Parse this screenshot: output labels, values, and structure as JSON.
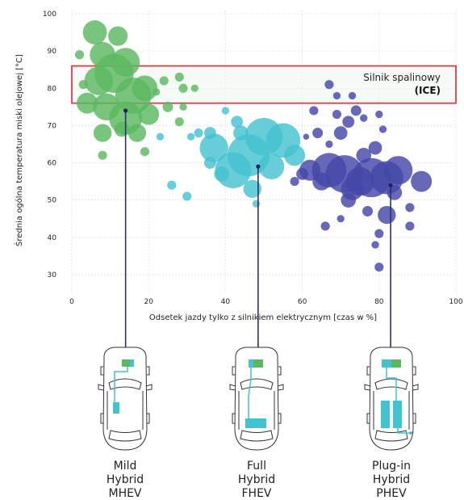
{
  "chart_data": {
    "type": "scatter",
    "ylabel": "Średnia ogólna temperatura miski olejowej [°C]",
    "xlabel": "Odsetek jazdy tylko z silnikiem elektrycznym [czas w %]",
    "xlim": [
      0,
      100
    ],
    "ylim": [
      25,
      100
    ],
    "x_ticks": [
      "0",
      "20",
      "40",
      "60",
      "80",
      "100"
    ],
    "y_ticks": [
      "100",
      "90",
      "80",
      "70",
      "60",
      "50",
      "40",
      "30"
    ],
    "band": {
      "y_range": [
        76,
        86
      ],
      "label_line1": "Silnik spalinowy",
      "label_line2": "(ICE)"
    },
    "series": [
      {
        "name": "MHEV",
        "color": "#5cb860",
        "marker": {
          "x": 14,
          "y": 74
        },
        "points": [
          {
            "x": 6,
            "y": 95,
            "r": 1.6
          },
          {
            "x": 12,
            "y": 94,
            "r": 1.3
          },
          {
            "x": 2,
            "y": 89,
            "r": 0.6
          },
          {
            "x": 8,
            "y": 89,
            "r": 1.7
          },
          {
            "x": 14,
            "y": 87,
            "r": 1.9
          },
          {
            "x": 11,
            "y": 84,
            "r": 2.6
          },
          {
            "x": 7,
            "y": 82,
            "r": 1.9
          },
          {
            "x": 3,
            "y": 81,
            "r": 0.6
          },
          {
            "x": 19,
            "y": 80,
            "r": 1.7
          },
          {
            "x": 16,
            "y": 78,
            "r": 2.4
          },
          {
            "x": 9,
            "y": 75,
            "r": 1.8
          },
          {
            "x": 4,
            "y": 76,
            "r": 1.4
          },
          {
            "x": 14,
            "y": 72,
            "r": 2.2
          },
          {
            "x": 20,
            "y": 73,
            "r": 1.4
          },
          {
            "x": 8,
            "y": 68,
            "r": 1.2
          },
          {
            "x": 13,
            "y": 69,
            "r": 1.0
          },
          {
            "x": 17,
            "y": 68,
            "r": 1.2
          },
          {
            "x": 24,
            "y": 82,
            "r": 0.6
          },
          {
            "x": 22,
            "y": 79,
            "r": 0.5
          },
          {
            "x": 28,
            "y": 83,
            "r": 0.6
          },
          {
            "x": 29,
            "y": 80,
            "r": 0.6
          },
          {
            "x": 25,
            "y": 75,
            "r": 0.7
          },
          {
            "x": 28,
            "y": 71,
            "r": 0.6
          },
          {
            "x": 32,
            "y": 80,
            "r": 0.5
          },
          {
            "x": 8,
            "y": 62,
            "r": 0.6
          },
          {
            "x": 19,
            "y": 63,
            "r": 0.6
          },
          {
            "x": 29,
            "y": 75,
            "r": 0.5
          }
        ]
      },
      {
        "name": "FHEV",
        "color": "#45c2d0",
        "marker": {
          "x": 48.5,
          "y": 59
        },
        "points": [
          {
            "x": 37,
            "y": 64,
            "r": 1.9
          },
          {
            "x": 42,
            "y": 58,
            "r": 2.4
          },
          {
            "x": 46,
            "y": 62,
            "r": 2.8
          },
          {
            "x": 50,
            "y": 67,
            "r": 2.5
          },
          {
            "x": 55,
            "y": 66,
            "r": 2.3
          },
          {
            "x": 52,
            "y": 59,
            "r": 1.7
          },
          {
            "x": 47,
            "y": 53,
            "r": 1.2
          },
          {
            "x": 39,
            "y": 57,
            "r": 1.0
          },
          {
            "x": 44,
            "y": 68,
            "r": 1.0
          },
          {
            "x": 43,
            "y": 71,
            "r": 0.8
          },
          {
            "x": 58,
            "y": 62,
            "r": 1.4
          },
          {
            "x": 36,
            "y": 68,
            "r": 0.8
          },
          {
            "x": 33,
            "y": 68,
            "r": 0.6
          },
          {
            "x": 31,
            "y": 67,
            "r": 0.5
          },
          {
            "x": 40,
            "y": 74,
            "r": 0.5
          },
          {
            "x": 23,
            "y": 67,
            "r": 0.5
          },
          {
            "x": 26,
            "y": 54,
            "r": 0.6
          },
          {
            "x": 30,
            "y": 51,
            "r": 0.6
          },
          {
            "x": 48,
            "y": 49,
            "r": 0.5
          },
          {
            "x": 36,
            "y": 60,
            "r": 0.8
          }
        ]
      },
      {
        "name": "PHEV",
        "color": "#4647a8",
        "marker": {
          "x": 83,
          "y": 54
        },
        "points": [
          {
            "x": 62,
            "y": 58,
            "r": 1.4
          },
          {
            "x": 67,
            "y": 58,
            "r": 2.3
          },
          {
            "x": 71,
            "y": 57,
            "r": 2.5
          },
          {
            "x": 75,
            "y": 55,
            "r": 1.9
          },
          {
            "x": 78,
            "y": 56,
            "r": 2.6
          },
          {
            "x": 82,
            "y": 56,
            "r": 2.2
          },
          {
            "x": 85,
            "y": 58,
            "r": 1.9
          },
          {
            "x": 73,
            "y": 53,
            "r": 1.5
          },
          {
            "x": 76,
            "y": 62,
            "r": 1.0
          },
          {
            "x": 79,
            "y": 64,
            "r": 0.9
          },
          {
            "x": 70,
            "y": 68,
            "r": 0.9
          },
          {
            "x": 72,
            "y": 71,
            "r": 0.8
          },
          {
            "x": 69,
            "y": 73,
            "r": 0.6
          },
          {
            "x": 74,
            "y": 74,
            "r": 0.7
          },
          {
            "x": 76,
            "y": 72,
            "r": 0.5
          },
          {
            "x": 80,
            "y": 73,
            "r": 0.5
          },
          {
            "x": 81,
            "y": 69,
            "r": 0.5
          },
          {
            "x": 63,
            "y": 74,
            "r": 0.6
          },
          {
            "x": 64,
            "y": 68,
            "r": 0.7
          },
          {
            "x": 67,
            "y": 65,
            "r": 0.5
          },
          {
            "x": 61,
            "y": 67,
            "r": 0.4
          },
          {
            "x": 91,
            "y": 55,
            "r": 1.4
          },
          {
            "x": 84,
            "y": 52,
            "r": 1.0
          },
          {
            "x": 82,
            "y": 46,
            "r": 1.2
          },
          {
            "x": 88,
            "y": 48,
            "r": 0.6
          },
          {
            "x": 77,
            "y": 47,
            "r": 0.7
          },
          {
            "x": 80,
            "y": 41,
            "r": 0.6
          },
          {
            "x": 79,
            "y": 38,
            "r": 0.5
          },
          {
            "x": 80,
            "y": 32,
            "r": 0.6
          },
          {
            "x": 66,
            "y": 43,
            "r": 0.6
          },
          {
            "x": 70,
            "y": 45,
            "r": 0.5
          },
          {
            "x": 88,
            "y": 43,
            "r": 0.6
          },
          {
            "x": 72,
            "y": 50,
            "r": 1.0
          },
          {
            "x": 65,
            "y": 55,
            "r": 1.2
          },
          {
            "x": 60,
            "y": 57,
            "r": 0.8
          },
          {
            "x": 58,
            "y": 55,
            "r": 0.6
          },
          {
            "x": 67,
            "y": 81,
            "r": 0.6
          },
          {
            "x": 69,
            "y": 78,
            "r": 0.5
          },
          {
            "x": 73,
            "y": 78,
            "r": 0.5
          }
        ]
      }
    ]
  },
  "vehicles": [
    {
      "line1": "Mild",
      "line2": "Hybrid",
      "line3": "MHEV"
    },
    {
      "line1": "Full",
      "line2": "Hybrid",
      "line3": "FHEV"
    },
    {
      "line1": "Plug-in",
      "line2": "Hybrid",
      "line3": "PHEV"
    }
  ],
  "colors": {
    "ice_border": "#e03b4b",
    "connector": "#2e2f6f",
    "teal": "#45c2d0",
    "green": "#5cb860"
  }
}
